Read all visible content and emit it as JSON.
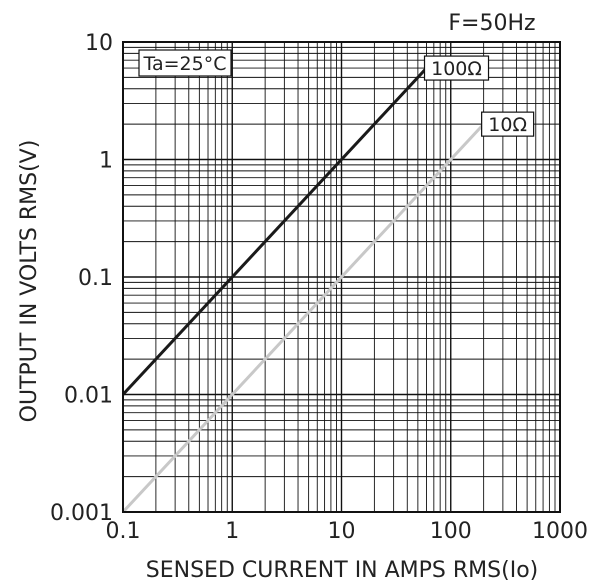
{
  "chart_data": {
    "type": "line",
    "frequency_label": "F=50Hz",
    "condition_label": "Ta=25°C",
    "xlabel": "SENSED CURRENT IN AMPS RMS(Io)",
    "ylabel": "OUTPUT IN VOLTS RMS(V)",
    "x_scale": "log",
    "y_scale": "log",
    "xlim": [
      0.1,
      1000
    ],
    "ylim": [
      0.001,
      10
    ],
    "x_ticks": [
      {
        "value": 0.1,
        "label": "0.1"
      },
      {
        "value": 1,
        "label": "1"
      },
      {
        "value": 10,
        "label": "10"
      },
      {
        "value": 100,
        "label": "100"
      },
      {
        "value": 1000,
        "label": "1000"
      }
    ],
    "y_ticks": [
      {
        "value": 0.001,
        "label": "0.001"
      },
      {
        "value": 0.01,
        "label": "0.01"
      },
      {
        "value": 0.1,
        "label": "0.1"
      },
      {
        "value": 1,
        "label": "1"
      },
      {
        "value": 10,
        "label": "10"
      }
    ],
    "grid": true,
    "series": [
      {
        "name": "100Ω",
        "color": "#1a1a1a",
        "x": [
          0.1,
          60
        ],
        "y": [
          0.01,
          6
        ]
      },
      {
        "name": "10Ω",
        "color": "#c8c8c8",
        "x": [
          0.1,
          200
        ],
        "y": [
          0.001,
          2
        ]
      }
    ]
  }
}
